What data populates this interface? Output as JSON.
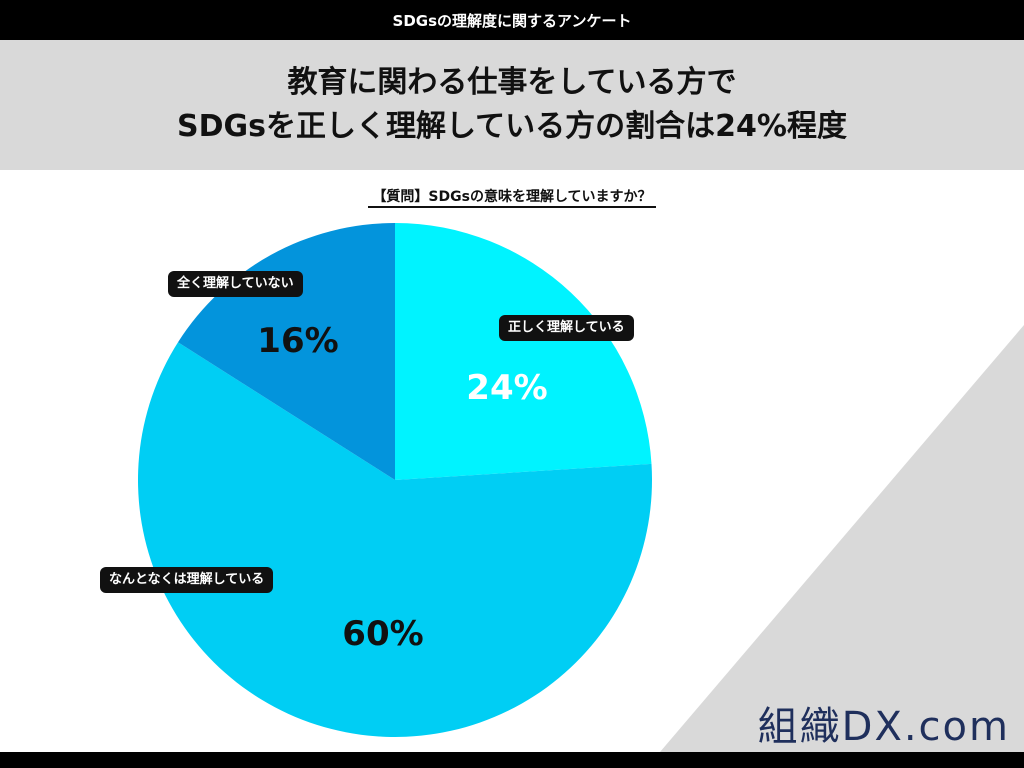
{
  "header": {
    "topbar_text": "SDGsの理解度に関するアンケート"
  },
  "title": {
    "line1": "教育に関わる仕事をしている方で",
    "line2": "SDGsを正しく理解している方の割合は24%程度"
  },
  "question": "【質問】SDGsの意味を理解していますか？",
  "logo": "組織DX.com",
  "colors": {
    "correct": "#00f3ff",
    "somewhat": "#00cef4",
    "none": "#0394dc",
    "topbar": "#000000",
    "titleband": "#d9d9d9"
  },
  "chart_data": {
    "type": "pie",
    "slices": [
      {
        "label": "正しく理解している",
        "value": 24,
        "value_label": "24%",
        "color": "#00f3ff",
        "value_color": "#ffffff"
      },
      {
        "label": "なんとなくは理解している",
        "value": 60,
        "value_label": "60%",
        "color": "#00cef4",
        "value_color": "#111111"
      },
      {
        "label": "全く理解していない",
        "value": 16,
        "value_label": "16%",
        "color": "#0394dc",
        "value_color": "#111111"
      }
    ]
  }
}
